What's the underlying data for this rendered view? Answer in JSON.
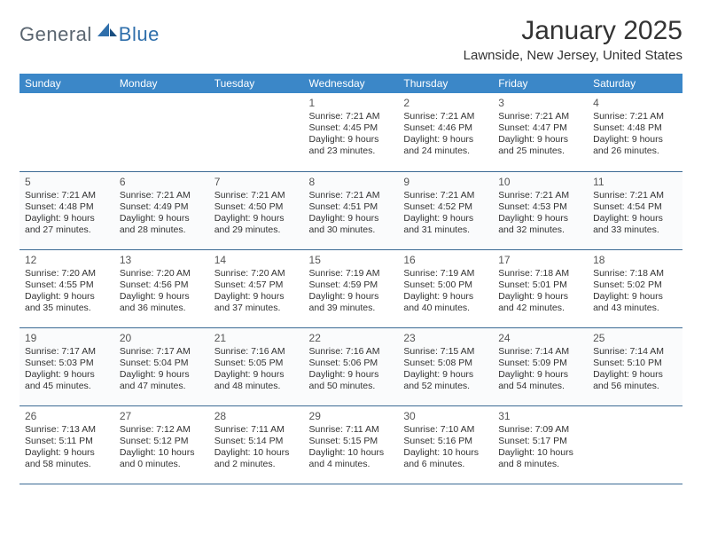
{
  "logo": {
    "general": "General",
    "blue": "Blue"
  },
  "title": "January 2025",
  "location": "Lawnside, New Jersey, United States",
  "header_bg": "#3b87c8",
  "rule_color": "#3b6a94",
  "day_names": [
    "Sunday",
    "Monday",
    "Tuesday",
    "Wednesday",
    "Thursday",
    "Friday",
    "Saturday"
  ],
  "weeks": [
    [
      {
        "n": "",
        "sr": "",
        "ss": "",
        "dl": ""
      },
      {
        "n": "",
        "sr": "",
        "ss": "",
        "dl": ""
      },
      {
        "n": "",
        "sr": "",
        "ss": "",
        "dl": ""
      },
      {
        "n": "1",
        "sr": "Sunrise: 7:21 AM",
        "ss": "Sunset: 4:45 PM",
        "dl": "Daylight: 9 hours and 23 minutes."
      },
      {
        "n": "2",
        "sr": "Sunrise: 7:21 AM",
        "ss": "Sunset: 4:46 PM",
        "dl": "Daylight: 9 hours and 24 minutes."
      },
      {
        "n": "3",
        "sr": "Sunrise: 7:21 AM",
        "ss": "Sunset: 4:47 PM",
        "dl": "Daylight: 9 hours and 25 minutes."
      },
      {
        "n": "4",
        "sr": "Sunrise: 7:21 AM",
        "ss": "Sunset: 4:48 PM",
        "dl": "Daylight: 9 hours and 26 minutes."
      }
    ],
    [
      {
        "n": "5",
        "sr": "Sunrise: 7:21 AM",
        "ss": "Sunset: 4:48 PM",
        "dl": "Daylight: 9 hours and 27 minutes."
      },
      {
        "n": "6",
        "sr": "Sunrise: 7:21 AM",
        "ss": "Sunset: 4:49 PM",
        "dl": "Daylight: 9 hours and 28 minutes."
      },
      {
        "n": "7",
        "sr": "Sunrise: 7:21 AM",
        "ss": "Sunset: 4:50 PM",
        "dl": "Daylight: 9 hours and 29 minutes."
      },
      {
        "n": "8",
        "sr": "Sunrise: 7:21 AM",
        "ss": "Sunset: 4:51 PM",
        "dl": "Daylight: 9 hours and 30 minutes."
      },
      {
        "n": "9",
        "sr": "Sunrise: 7:21 AM",
        "ss": "Sunset: 4:52 PM",
        "dl": "Daylight: 9 hours and 31 minutes."
      },
      {
        "n": "10",
        "sr": "Sunrise: 7:21 AM",
        "ss": "Sunset: 4:53 PM",
        "dl": "Daylight: 9 hours and 32 minutes."
      },
      {
        "n": "11",
        "sr": "Sunrise: 7:21 AM",
        "ss": "Sunset: 4:54 PM",
        "dl": "Daylight: 9 hours and 33 minutes."
      }
    ],
    [
      {
        "n": "12",
        "sr": "Sunrise: 7:20 AM",
        "ss": "Sunset: 4:55 PM",
        "dl": "Daylight: 9 hours and 35 minutes."
      },
      {
        "n": "13",
        "sr": "Sunrise: 7:20 AM",
        "ss": "Sunset: 4:56 PM",
        "dl": "Daylight: 9 hours and 36 minutes."
      },
      {
        "n": "14",
        "sr": "Sunrise: 7:20 AM",
        "ss": "Sunset: 4:57 PM",
        "dl": "Daylight: 9 hours and 37 minutes."
      },
      {
        "n": "15",
        "sr": "Sunrise: 7:19 AM",
        "ss": "Sunset: 4:59 PM",
        "dl": "Daylight: 9 hours and 39 minutes."
      },
      {
        "n": "16",
        "sr": "Sunrise: 7:19 AM",
        "ss": "Sunset: 5:00 PM",
        "dl": "Daylight: 9 hours and 40 minutes."
      },
      {
        "n": "17",
        "sr": "Sunrise: 7:18 AM",
        "ss": "Sunset: 5:01 PM",
        "dl": "Daylight: 9 hours and 42 minutes."
      },
      {
        "n": "18",
        "sr": "Sunrise: 7:18 AM",
        "ss": "Sunset: 5:02 PM",
        "dl": "Daylight: 9 hours and 43 minutes."
      }
    ],
    [
      {
        "n": "19",
        "sr": "Sunrise: 7:17 AM",
        "ss": "Sunset: 5:03 PM",
        "dl": "Daylight: 9 hours and 45 minutes."
      },
      {
        "n": "20",
        "sr": "Sunrise: 7:17 AM",
        "ss": "Sunset: 5:04 PM",
        "dl": "Daylight: 9 hours and 47 minutes."
      },
      {
        "n": "21",
        "sr": "Sunrise: 7:16 AM",
        "ss": "Sunset: 5:05 PM",
        "dl": "Daylight: 9 hours and 48 minutes."
      },
      {
        "n": "22",
        "sr": "Sunrise: 7:16 AM",
        "ss": "Sunset: 5:06 PM",
        "dl": "Daylight: 9 hours and 50 minutes."
      },
      {
        "n": "23",
        "sr": "Sunrise: 7:15 AM",
        "ss": "Sunset: 5:08 PM",
        "dl": "Daylight: 9 hours and 52 minutes."
      },
      {
        "n": "24",
        "sr": "Sunrise: 7:14 AM",
        "ss": "Sunset: 5:09 PM",
        "dl": "Daylight: 9 hours and 54 minutes."
      },
      {
        "n": "25",
        "sr": "Sunrise: 7:14 AM",
        "ss": "Sunset: 5:10 PM",
        "dl": "Daylight: 9 hours and 56 minutes."
      }
    ],
    [
      {
        "n": "26",
        "sr": "Sunrise: 7:13 AM",
        "ss": "Sunset: 5:11 PM",
        "dl": "Daylight: 9 hours and 58 minutes."
      },
      {
        "n": "27",
        "sr": "Sunrise: 7:12 AM",
        "ss": "Sunset: 5:12 PM",
        "dl": "Daylight: 10 hours and 0 minutes."
      },
      {
        "n": "28",
        "sr": "Sunrise: 7:11 AM",
        "ss": "Sunset: 5:14 PM",
        "dl": "Daylight: 10 hours and 2 minutes."
      },
      {
        "n": "29",
        "sr": "Sunrise: 7:11 AM",
        "ss": "Sunset: 5:15 PM",
        "dl": "Daylight: 10 hours and 4 minutes."
      },
      {
        "n": "30",
        "sr": "Sunrise: 7:10 AM",
        "ss": "Sunset: 5:16 PM",
        "dl": "Daylight: 10 hours and 6 minutes."
      },
      {
        "n": "31",
        "sr": "Sunrise: 7:09 AM",
        "ss": "Sunset: 5:17 PM",
        "dl": "Daylight: 10 hours and 8 minutes."
      },
      {
        "n": "",
        "sr": "",
        "ss": "",
        "dl": ""
      }
    ]
  ]
}
